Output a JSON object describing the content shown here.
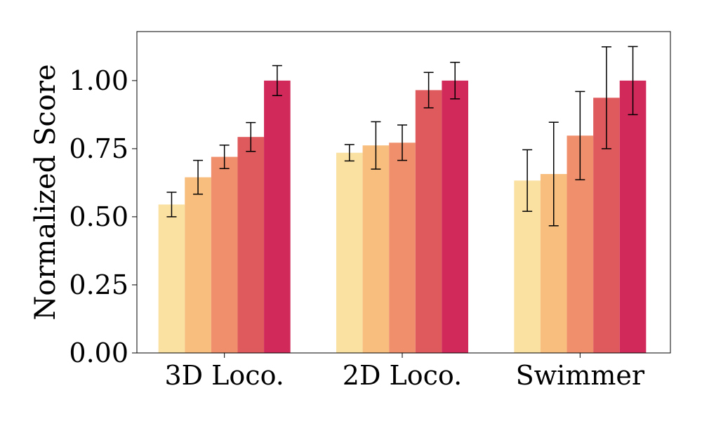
{
  "chart_data": {
    "type": "bar",
    "title": "",
    "xlabel": "",
    "ylabel": "Normalized Score",
    "ylim": [
      0,
      1.18
    ],
    "yticks": [
      "0.00",
      "0.25",
      "0.50",
      "0.75",
      "1.00"
    ],
    "categories": [
      "3D Loco.",
      "2D Loco.",
      "Swimmer"
    ],
    "series": [
      {
        "color": "#fae0a1",
        "values": [
          0.545,
          0.735,
          0.633
        ],
        "errors": [
          0.045,
          0.03,
          0.113
        ]
      },
      {
        "color": "#f7be7e",
        "values": [
          0.645,
          0.762,
          0.657
        ],
        "errors": [
          0.062,
          0.087,
          0.19
        ]
      },
      {
        "color": "#f08f6c",
        "values": [
          0.72,
          0.772,
          0.798
        ],
        "errors": [
          0.043,
          0.065,
          0.162
        ]
      },
      {
        "color": "#df5a5c",
        "values": [
          0.793,
          0.965,
          0.937
        ],
        "errors": [
          0.053,
          0.065,
          0.187
        ]
      },
      {
        "color": "#d0295a",
        "values": [
          1.0,
          1.0,
          1.0
        ],
        "errors": [
          0.055,
          0.067,
          0.125
        ]
      }
    ],
    "grid": false,
    "legend": "none"
  }
}
